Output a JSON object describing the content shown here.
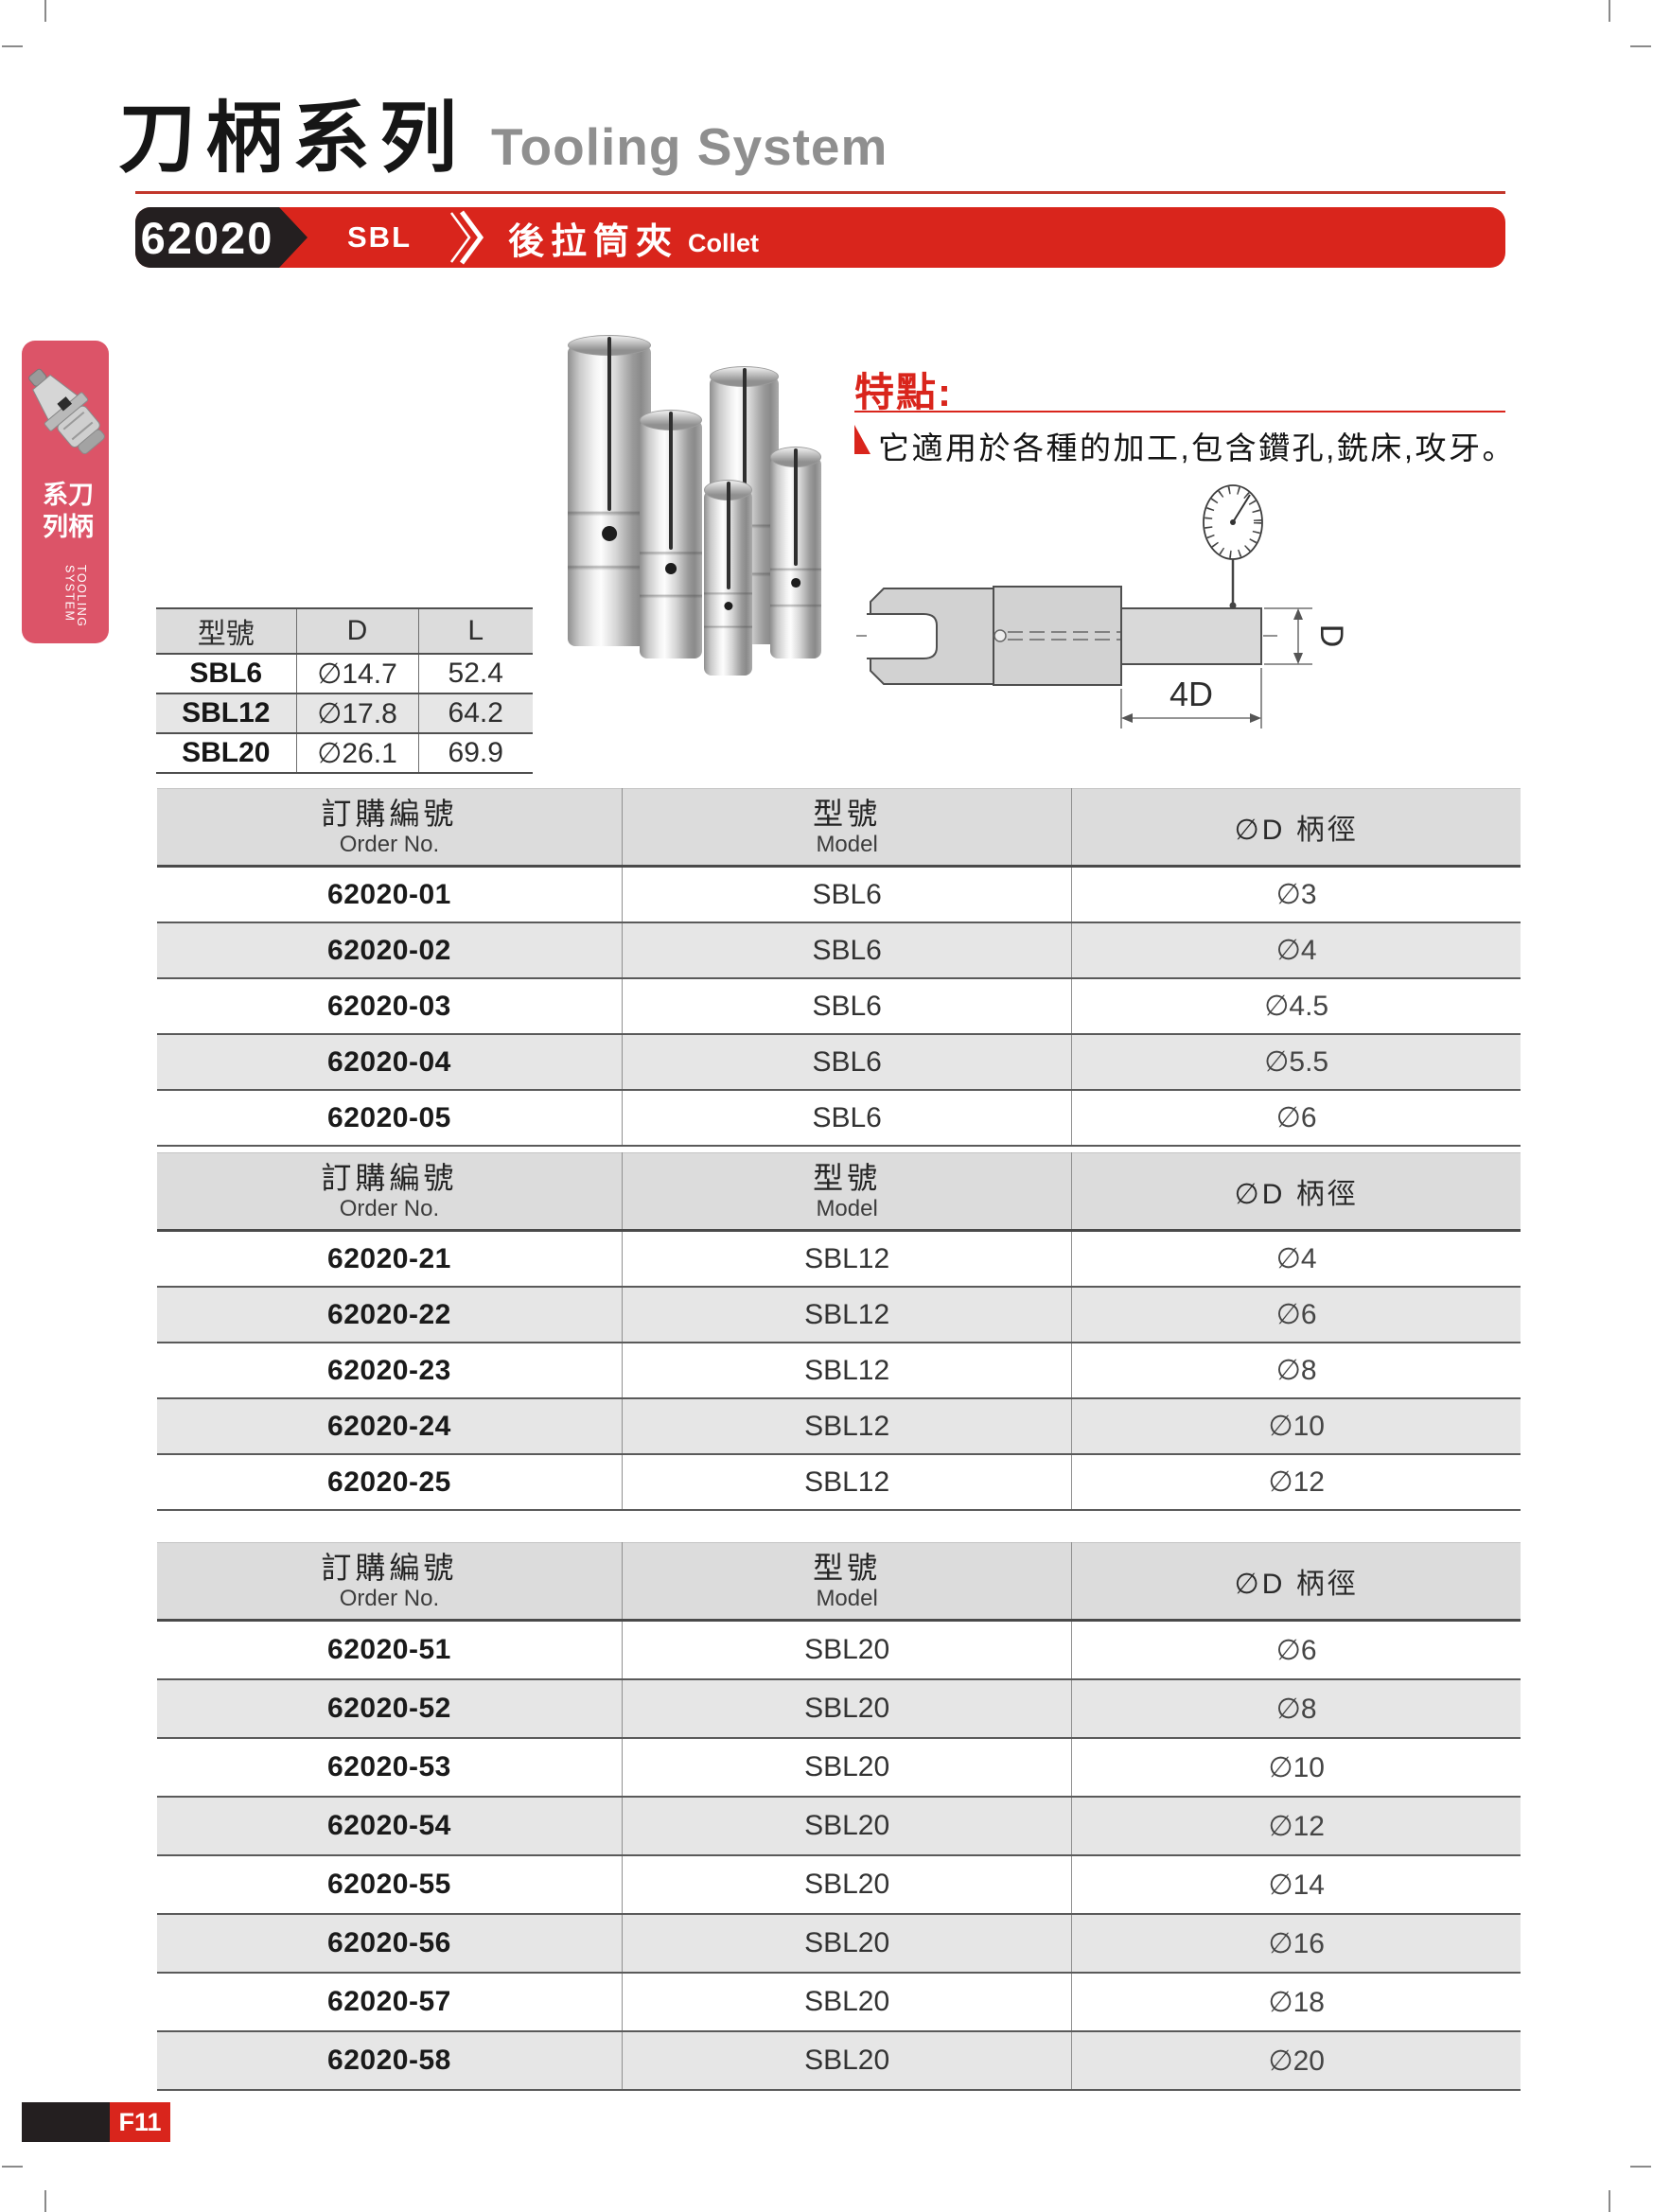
{
  "page": {
    "title_zh": "刀柄系列",
    "title_en": "Tooling System",
    "page_label": "F11"
  },
  "banner": {
    "code": "62020",
    "series": "SBL",
    "name_zh": "後拉筒夾",
    "name_en": "Collet"
  },
  "sidebar": {
    "label_zh": "刀柄系列",
    "label_en": "TOOLING SYSTEM"
  },
  "features": {
    "heading": "特點:",
    "item": "它適用於各種的加工,包含鑽孔,銑床,攻牙。"
  },
  "spec_table": {
    "headers": [
      "型號",
      "D",
      "L"
    ],
    "rows": [
      [
        "SBL6",
        "∅14.7",
        "52.4"
      ],
      [
        "SBL12",
        "∅17.8",
        "64.2"
      ],
      [
        "SBL20",
        "∅26.1",
        "69.9"
      ]
    ]
  },
  "diagram": {
    "dim_length": "4D",
    "dim_diameter": "D"
  },
  "order_table_headers": {
    "col1_zh": "訂購編號",
    "col1_en": "Order No.",
    "col2_zh": "型號",
    "col2_en": "Model",
    "col3": "∅D 柄徑"
  },
  "order_tables": [
    {
      "rows": [
        [
          "62020-01",
          "SBL6",
          "∅3"
        ],
        [
          "62020-02",
          "SBL6",
          "∅4"
        ],
        [
          "62020-03",
          "SBL6",
          "∅4.5"
        ],
        [
          "62020-04",
          "SBL6",
          "∅5.5"
        ],
        [
          "62020-05",
          "SBL6",
          "∅6"
        ]
      ]
    },
    {
      "rows": [
        [
          "62020-21",
          "SBL12",
          "∅4"
        ],
        [
          "62020-22",
          "SBL12",
          "∅6"
        ],
        [
          "62020-23",
          "SBL12",
          "∅8"
        ],
        [
          "62020-24",
          "SBL12",
          "∅10"
        ],
        [
          "62020-25",
          "SBL12",
          "∅12"
        ]
      ]
    },
    {
      "rows": [
        [
          "62020-51",
          "SBL20",
          "∅6"
        ],
        [
          "62020-52",
          "SBL20",
          "∅8"
        ],
        [
          "62020-53",
          "SBL20",
          "∅10"
        ],
        [
          "62020-54",
          "SBL20",
          "∅12"
        ],
        [
          "62020-55",
          "SBL20",
          "∅14"
        ],
        [
          "62020-56",
          "SBL20",
          "∅16"
        ],
        [
          "62020-57",
          "SBL20",
          "∅18"
        ],
        [
          "62020-58",
          "SBL20",
          "∅20"
        ]
      ]
    }
  ],
  "colors": {
    "red": "#d9251c",
    "pink": "#dc5468",
    "black": "#241f20",
    "header_gray": "#dcdcdc",
    "row_alt_gray": "#e6e6e6"
  }
}
